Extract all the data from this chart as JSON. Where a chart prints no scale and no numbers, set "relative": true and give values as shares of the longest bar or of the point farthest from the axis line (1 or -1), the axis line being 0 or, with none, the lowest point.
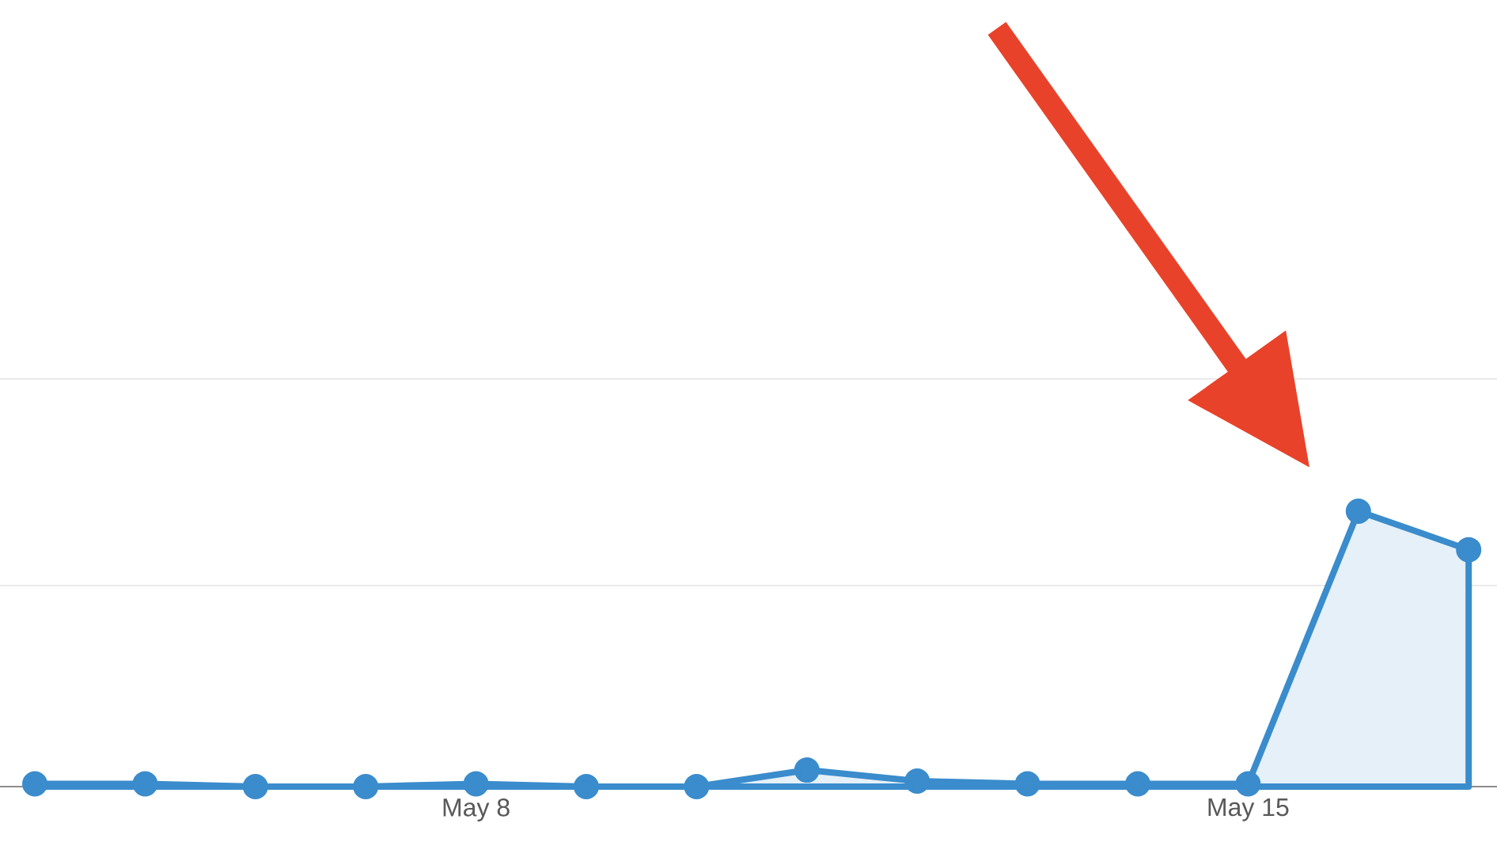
{
  "chart_data": {
    "type": "area",
    "relative": true,
    "categories": [
      null,
      null,
      null,
      null,
      "May 8",
      null,
      null,
      null,
      null,
      null,
      null,
      "May 15",
      null,
      null
    ],
    "series": [
      {
        "color": "#3a8ccc",
        "values": [
          0.01,
          0.01,
          0,
          0,
          0.01,
          0,
          0,
          0.06,
          0.02,
          0.01,
          0.01,
          0.01,
          1,
          0.86
        ]
      }
    ],
    "ref_lines": [
      {
        "axis": "y",
        "value": 0.73,
        "color": "#e5e5e5"
      },
      {
        "axis": "y",
        "value": 1.48,
        "color": "#e5e5e5"
      }
    ],
    "marker": "circle",
    "line_style": "solid"
  }
}
